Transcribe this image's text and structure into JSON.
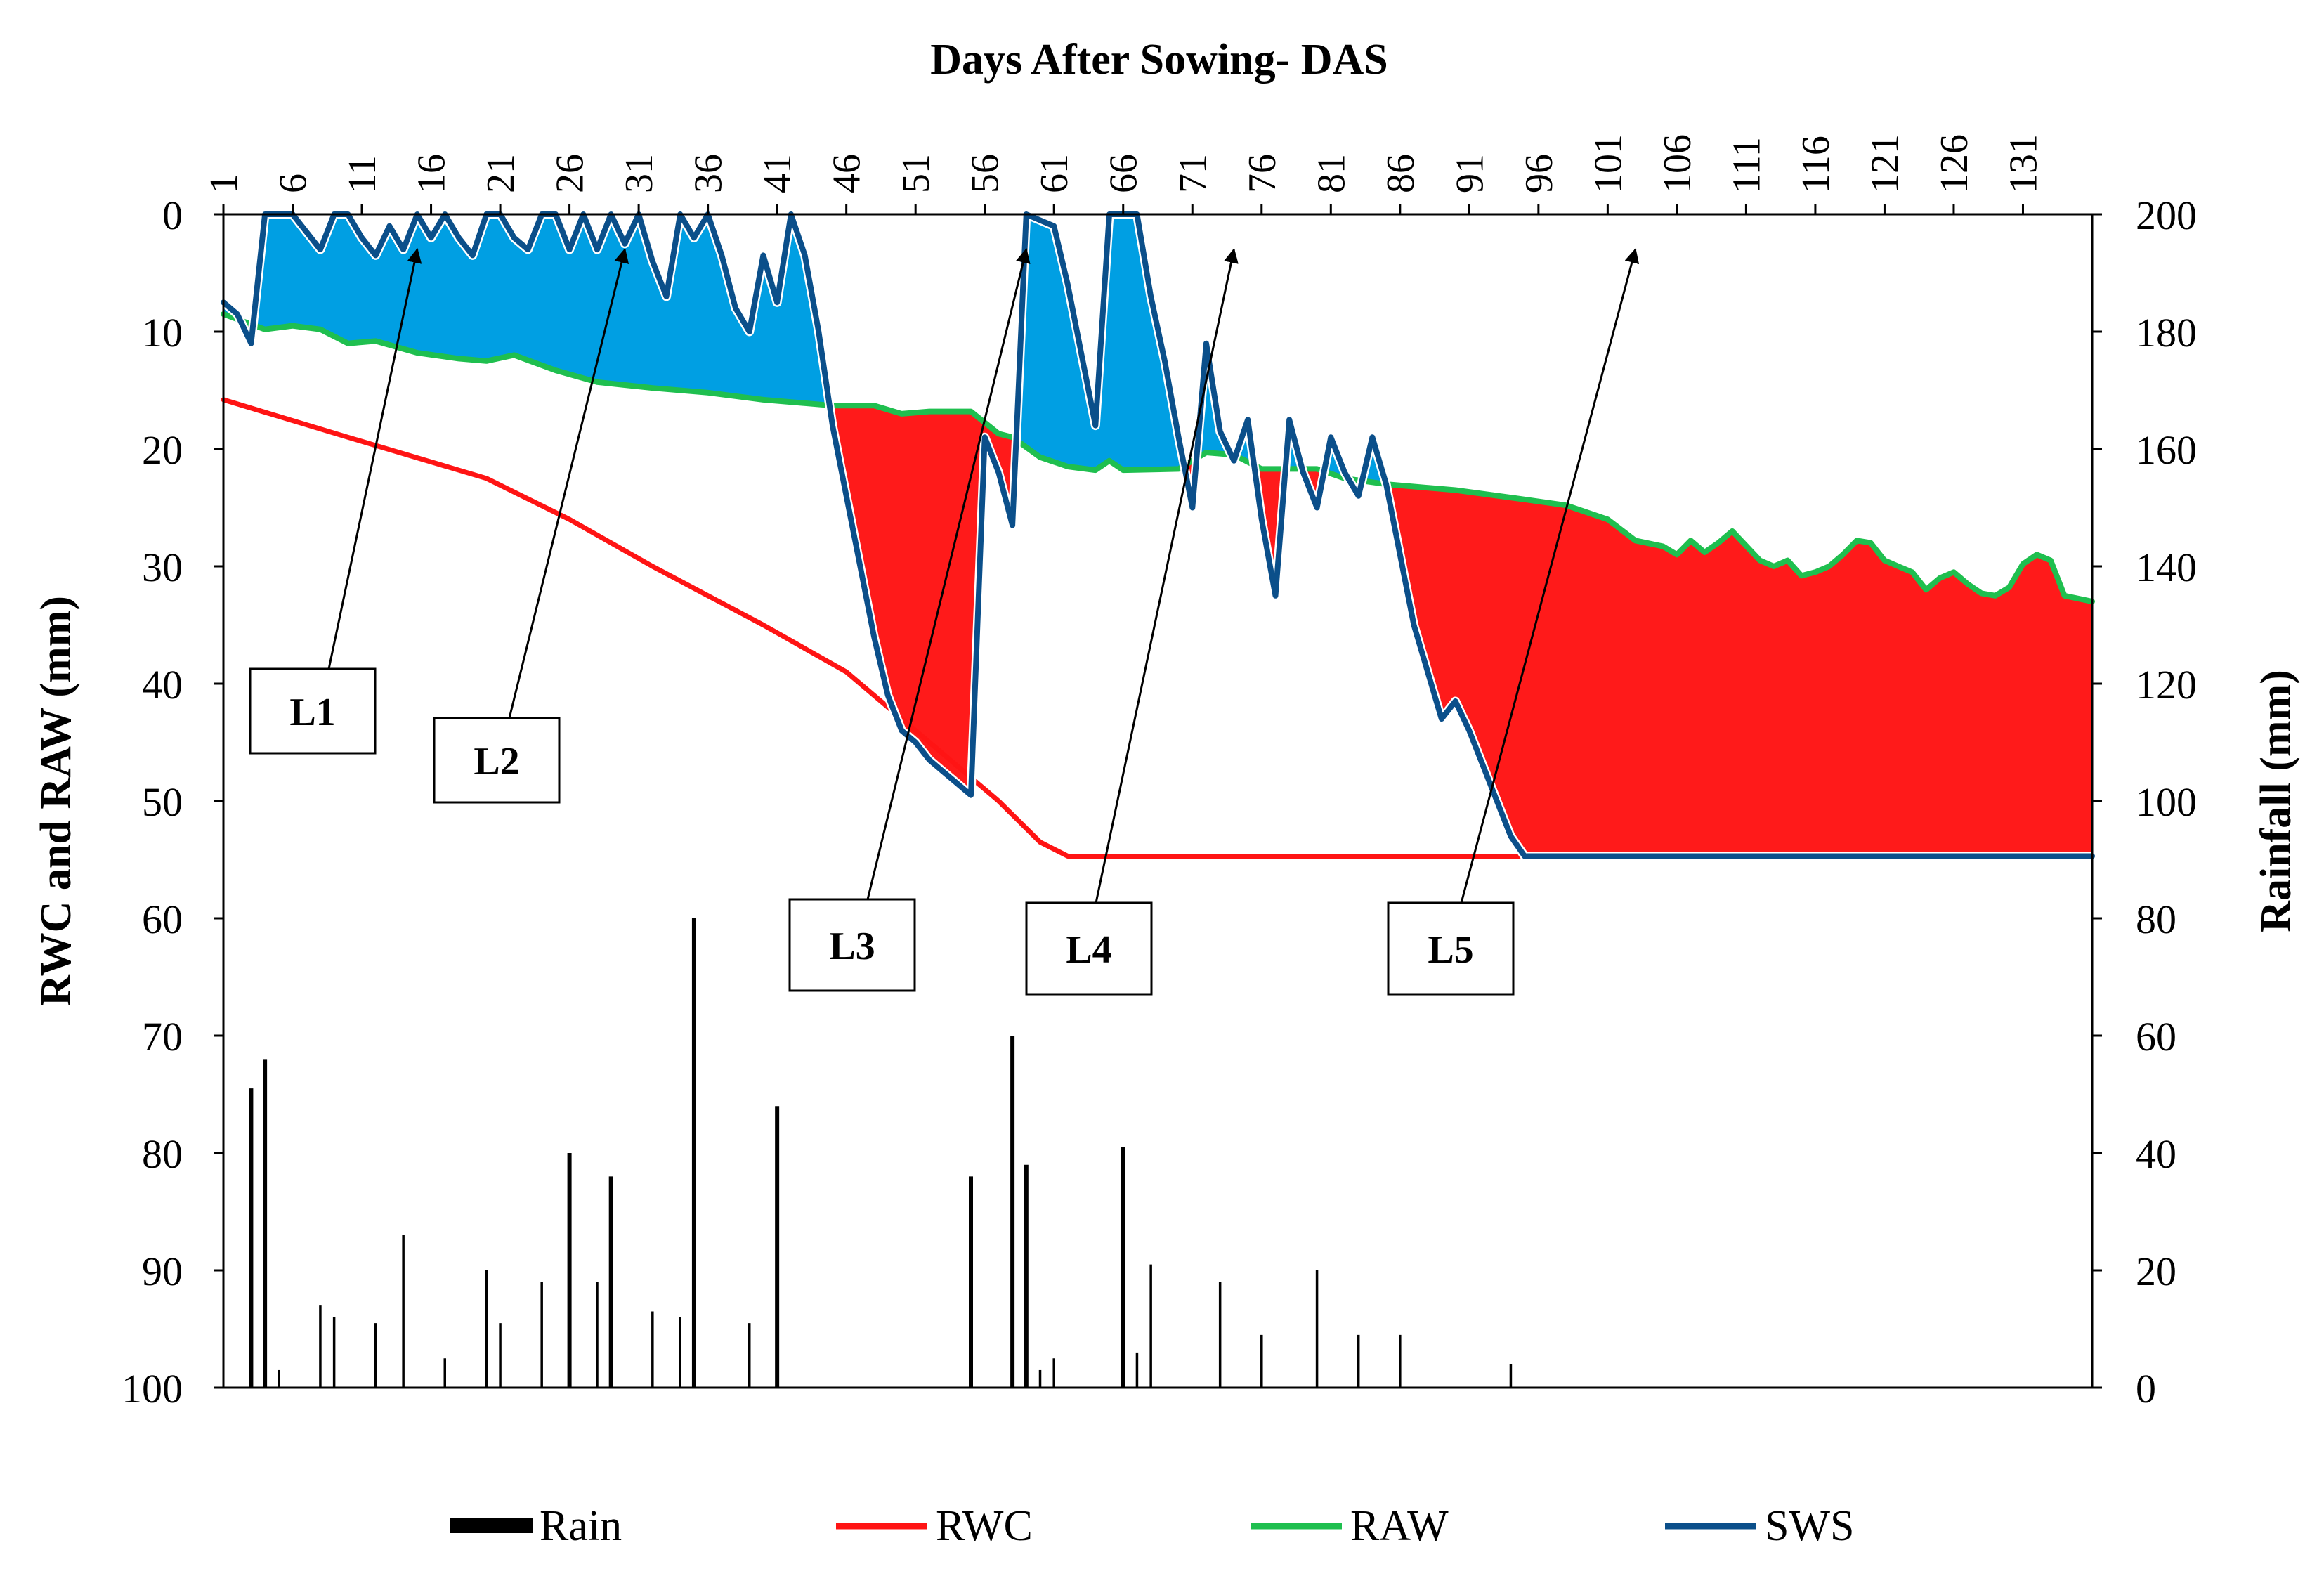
{
  "chart_data": {
    "type": "line",
    "title": "Days After Sowing- DAS",
    "xlabel": "Days After Sowing- DAS",
    "ylabel_left": "RWC and RAW (mm)",
    "ylabel_right": "Rainfall (mm)",
    "x_range": [
      1,
      136
    ],
    "x_ticks": [
      "1",
      "6",
      "11",
      "16",
      "21",
      "26",
      "31",
      "36",
      "41",
      "46",
      "51",
      "56",
      "61",
      "66",
      "71",
      "76",
      "81",
      "86",
      "91",
      "96",
      "101",
      "106",
      "111",
      "116",
      "121",
      "126",
      "131"
    ],
    "ylim_left": [
      0,
      100
    ],
    "ylim_left_inverted": true,
    "y_ticks_left": [
      "0",
      "10",
      "20",
      "30",
      "40",
      "50",
      "60",
      "70",
      "80",
      "90",
      "100"
    ],
    "ylim_right": [
      0,
      200
    ],
    "y_ticks_right": [
      "0",
      "20",
      "40",
      "60",
      "80",
      "100",
      "120",
      "140",
      "160",
      "180",
      "200"
    ],
    "colors": {
      "RWC": "#ff1414",
      "RAW": "#1fbf4f",
      "SWS": "#0b4f8a",
      "rain": "#000000",
      "surplus_fill": "#009fe3",
      "deficit_fill": "#ff1a1a"
    },
    "legend": [
      "Rain",
      "RWC",
      "RAW",
      "SWS"
    ],
    "legend_position": "bottom",
    "series": [
      {
        "name": "RWC",
        "axis": "left",
        "points": [
          [
            1,
            15.8
          ],
          [
            10,
            19
          ],
          [
            20,
            22.5
          ],
          [
            26,
            26
          ],
          [
            32,
            30
          ],
          [
            40,
            35
          ],
          [
            46,
            39
          ],
          [
            53,
            46
          ],
          [
            57,
            50
          ],
          [
            60,
            53.5
          ],
          [
            62,
            54.7
          ],
          [
            136,
            54.7
          ]
        ]
      },
      {
        "name": "RAW",
        "axis": "left",
        "points": [
          [
            1,
            8.5
          ],
          [
            4,
            9.8
          ],
          [
            6,
            9.5
          ],
          [
            8,
            9.8
          ],
          [
            10,
            11
          ],
          [
            12,
            10.8
          ],
          [
            15,
            11.8
          ],
          [
            18,
            12.3
          ],
          [
            20,
            12.5
          ],
          [
            22,
            12
          ],
          [
            25,
            13.3
          ],
          [
            28,
            14.3
          ],
          [
            32,
            14.8
          ],
          [
            36,
            15.2
          ],
          [
            40,
            15.8
          ],
          [
            45,
            16.3
          ],
          [
            48,
            16.3
          ],
          [
            50,
            17
          ],
          [
            52,
            16.8
          ],
          [
            55,
            16.8
          ],
          [
            57,
            18.7
          ],
          [
            58,
            19
          ],
          [
            60,
            20.7
          ],
          [
            62,
            21.5
          ],
          [
            64,
            21.8
          ],
          [
            65,
            21
          ],
          [
            66,
            21.8
          ],
          [
            70,
            21.7
          ],
          [
            71,
            21
          ],
          [
            72,
            20.3
          ],
          [
            74,
            20.5
          ],
          [
            76,
            21.7
          ],
          [
            80,
            21.7
          ],
          [
            82,
            22.5
          ],
          [
            85,
            23
          ],
          [
            90,
            23.5
          ],
          [
            95,
            24.3
          ],
          [
            98,
            24.8
          ],
          [
            101,
            26
          ],
          [
            103,
            27.8
          ],
          [
            105,
            28.3
          ],
          [
            106,
            29
          ],
          [
            107,
            27.8
          ],
          [
            108,
            28.8
          ],
          [
            109,
            28
          ],
          [
            110,
            27
          ],
          [
            112,
            29.5
          ],
          [
            113,
            30
          ],
          [
            114,
            29.5
          ],
          [
            115,
            30.8
          ],
          [
            116,
            30.5
          ],
          [
            117,
            30
          ],
          [
            118,
            29
          ],
          [
            119,
            27.8
          ],
          [
            120,
            28
          ],
          [
            121,
            29.5
          ],
          [
            122,
            30
          ],
          [
            123,
            30.5
          ],
          [
            124,
            32
          ],
          [
            125,
            31
          ],
          [
            126,
            30.5
          ],
          [
            127,
            31.5
          ],
          [
            128,
            32.3
          ],
          [
            129,
            32.5
          ],
          [
            130,
            31.8
          ],
          [
            131,
            29.8
          ],
          [
            132,
            29
          ],
          [
            133,
            29.5
          ],
          [
            134,
            32.5
          ],
          [
            136,
            33
          ]
        ]
      },
      {
        "name": "SWS",
        "axis": "left",
        "points": [
          [
            1,
            7.5
          ],
          [
            2,
            8.5
          ],
          [
            3,
            11
          ],
          [
            4,
            0
          ],
          [
            5,
            0
          ],
          [
            6,
            0
          ],
          [
            7,
            1.5
          ],
          [
            8,
            3
          ],
          [
            9,
            0
          ],
          [
            10,
            0
          ],
          [
            11,
            2
          ],
          [
            12,
            3.5
          ],
          [
            13,
            1
          ],
          [
            14,
            3
          ],
          [
            15,
            0
          ],
          [
            16,
            2
          ],
          [
            17,
            0
          ],
          [
            18,
            2
          ],
          [
            19,
            3.5
          ],
          [
            20,
            0
          ],
          [
            21,
            0
          ],
          [
            22,
            2
          ],
          [
            23,
            3
          ],
          [
            24,
            0
          ],
          [
            25,
            0
          ],
          [
            26,
            3
          ],
          [
            27,
            0
          ],
          [
            28,
            3
          ],
          [
            29,
            0
          ],
          [
            30,
            2.5
          ],
          [
            31,
            0
          ],
          [
            32,
            4
          ],
          [
            33,
            7
          ],
          [
            34,
            0
          ],
          [
            35,
            2
          ],
          [
            36,
            0
          ],
          [
            37,
            3.5
          ],
          [
            38,
            8
          ],
          [
            39,
            10
          ],
          [
            40,
            3.5
          ],
          [
            41,
            7.5
          ],
          [
            42,
            0
          ],
          [
            43,
            3.5
          ],
          [
            44,
            10
          ],
          [
            45,
            18
          ],
          [
            46,
            24
          ],
          [
            47,
            30
          ],
          [
            48,
            36
          ],
          [
            49,
            41
          ],
          [
            50,
            44
          ],
          [
            51,
            45
          ],
          [
            52,
            46.5
          ],
          [
            53,
            47.5
          ],
          [
            54,
            48.5
          ],
          [
            55,
            49.5
          ],
          [
            56,
            19
          ],
          [
            57,
            22
          ],
          [
            58,
            26.5
          ],
          [
            59,
            0
          ],
          [
            60,
            0.5
          ],
          [
            61,
            1
          ],
          [
            62,
            6
          ],
          [
            63,
            12
          ],
          [
            64,
            18
          ],
          [
            65,
            0
          ],
          [
            66,
            0
          ],
          [
            67,
            0
          ],
          [
            68,
            7
          ],
          [
            69,
            12.5
          ],
          [
            70,
            19
          ],
          [
            71,
            25
          ],
          [
            72,
            11
          ],
          [
            73,
            18.5
          ],
          [
            74,
            21
          ],
          [
            75,
            17.5
          ],
          [
            76,
            26
          ],
          [
            77,
            32.5
          ],
          [
            78,
            17.5
          ],
          [
            79,
            22
          ],
          [
            80,
            25
          ],
          [
            81,
            19
          ],
          [
            82,
            22
          ],
          [
            83,
            24
          ],
          [
            84,
            19
          ],
          [
            85,
            23
          ],
          [
            86,
            29
          ],
          [
            87,
            35
          ],
          [
            88,
            39
          ],
          [
            89,
            43
          ],
          [
            90,
            41.5
          ],
          [
            91,
            44
          ],
          [
            92,
            47
          ],
          [
            93,
            50
          ],
          [
            94,
            53
          ],
          [
            95,
            54.7
          ],
          [
            136,
            54.7
          ]
        ]
      }
    ],
    "rainfall": {
      "axis": "right",
      "days": [
        3,
        4,
        5,
        8,
        9,
        12,
        14,
        17,
        20,
        21,
        24,
        26,
        28,
        29,
        32,
        34,
        35,
        39,
        41,
        55,
        58,
        59,
        60,
        61,
        66,
        67,
        68,
        73,
        76,
        80,
        83,
        86,
        94
      ],
      "values": [
        51,
        56,
        3,
        14,
        12,
        11,
        26,
        5,
        20,
        11,
        18,
        40,
        18,
        36,
        13,
        12,
        80,
        11,
        48,
        36,
        60,
        38,
        3,
        5,
        41,
        6,
        21,
        18,
        9,
        20,
        9,
        9,
        4
      ]
    },
    "annotations": [
      {
        "label": "L1",
        "target": [
          15,
          3
        ]
      },
      {
        "label": "L2",
        "target": [
          30,
          3
        ]
      },
      {
        "label": "L3",
        "target": [
          59,
          3
        ]
      },
      {
        "label": "L4",
        "target": [
          74,
          3
        ]
      },
      {
        "label": "L5",
        "target": [
          103,
          3
        ]
      }
    ]
  }
}
